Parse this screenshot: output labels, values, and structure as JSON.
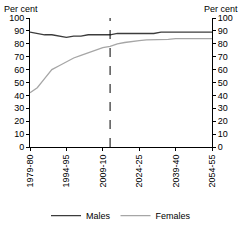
{
  "chart_data": {
    "type": "line",
    "y_label": "Per cent",
    "y2_label": "Per cent",
    "categories": [
      "1979-80",
      null,
      null,
      null,
      null,
      "1994-95",
      null,
      null,
      null,
      null,
      "2009-10",
      null,
      null,
      null,
      null,
      "2024-25",
      null,
      null,
      null,
      null,
      "2039-40",
      null,
      null,
      null,
      null,
      "2054-55"
    ],
    "series": [
      {
        "name": "Males",
        "color": "#3c3c3c",
        "line_style": "solid",
        "values": [
          89,
          88,
          87,
          87,
          86,
          85,
          86,
          86,
          87,
          87,
          87,
          87,
          88,
          88,
          88,
          88,
          88,
          88,
          89,
          89,
          89,
          89,
          89,
          89,
          89,
          89
        ]
      },
      {
        "name": "Females",
        "color": "#a6a6a6",
        "line_style": "solid",
        "values": [
          42,
          46,
          53,
          60,
          63,
          66,
          69,
          71,
          73,
          75,
          77,
          78,
          80,
          81,
          82,
          82.5,
          83,
          83,
          83.5,
          83.5,
          84,
          84,
          84,
          84,
          84,
          84
        ]
      }
    ],
    "vertical_line": {
      "index": 11,
      "line_style": "dash"
    },
    "ylim": [
      0,
      100
    ],
    "yticks": [
      0,
      10,
      20,
      30,
      40,
      50,
      60,
      70,
      80,
      90,
      100
    ],
    "grid": false,
    "legend": "bottom"
  }
}
